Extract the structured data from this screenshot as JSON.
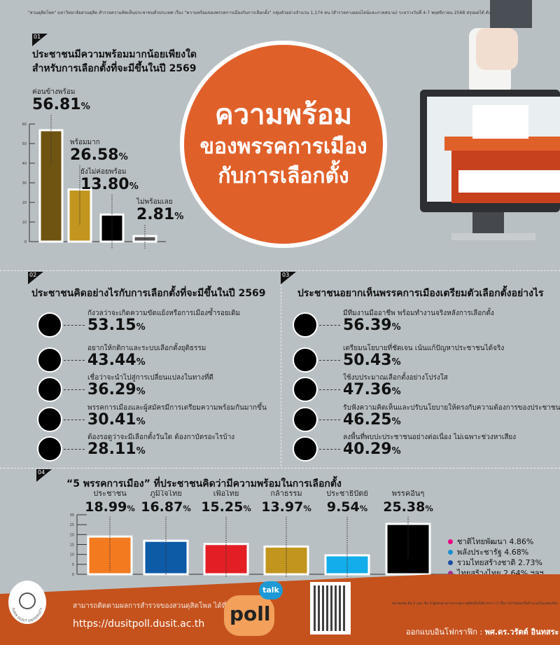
{
  "source_note": "\"สวนดุสิตโพล\" มหาวิทยาลัยสวนดุสิต สำรวจความคิดเห็นประชาชนทั่วประเทศ เรื่อง \"ความพร้อมของพรรคการเมืองกับการเลือกตั้ง\" กลุ่มตัวอย่างจำนวน 1,174 คน (สำรวจทางออนไลน์และภาคสนาม) ระหว่างวันที่ 4-7 พฤศจิกายน 2568 สรุปผลได้ ดังนี้",
  "hero": {
    "line1": "ความพร้อม",
    "line2": "ของพรรคการเมือง",
    "line3": "กับการเลือกตั้ง"
  },
  "s1": {
    "tag": "01",
    "title1": "ประชาชนมีความพร้อมมากน้อยเพียงใด",
    "title2": "สำหรับการเลือกตั้งที่จะมีขึ้นในปี 2569"
  },
  "s2": {
    "tag": "02",
    "title": "ประชาชนคิดอย่างไรกับการเลือกตั้งที่จะมีขึ้นในปี 2569",
    "items": [
      {
        "label": "กังวลว่าจะเกิดความขัดแย้งหรือการเมืองซ้ำรอยเดิม",
        "value": "53.15"
      },
      {
        "label": "อยากให้กติกาและระบบเลือกตั้งยุติธรรม",
        "value": "43.44"
      },
      {
        "label": "เชื่อว่าจะนำไปสู่การเปลี่ยนแปลงในทางที่ดี",
        "value": "36.29"
      },
      {
        "label": "พรรคการเมืองและผู้สมัครมีการเตรียมความพร้อมกันมากขึ้น",
        "value": "30.41"
      },
      {
        "label": "ต้องรอดูว่าจะมีเลือกตั้งวันใด ต้องกาบัตรอะไรบ้าง",
        "value": "28.11"
      }
    ]
  },
  "s3": {
    "tag": "03",
    "title": "ประชาชนอยากเห็นพรรคการเมืองเตรียมตัวเลือกตั้งอย่างไร",
    "items": [
      {
        "label": "มีทีมงานมืออาชีพ พร้อมทำงานจริงหลังการเลือกตั้ง",
        "value": "56.39"
      },
      {
        "label": "เตรียมนโยบายที่ชัดเจน เน้นแก้ปัญหาประชาชนได้จริง",
        "value": "50.43"
      },
      {
        "label": "ใช้งบประมาณเลือกตั้งอย่างโปร่งใส",
        "value": "47.36"
      },
      {
        "label": "รับฟังความคิดเห็นและปรับนโยบายให้ตรงกับความต้องการของประชาชน",
        "value": "46.25"
      },
      {
        "label": "ลงพื้นที่พบปะประชาชนอย่างต่อเนื่อง ไม่เฉพาะช่วงหาเสียง",
        "value": "40.29"
      }
    ]
  },
  "s4": {
    "tag": "04",
    "title": "“5 พรรคการเมือง” ที่ประชาชนคิดว่ามีความพร้อมในการเลือกตั้ง",
    "others": [
      {
        "label": "ชาติไทยพัฒนา 4.86%",
        "color": "#e6007e"
      },
      {
        "label": "พลังประชารัฐ 4.68%",
        "color": "#1a8fd0"
      },
      {
        "label": "รวมไทยสร้างชาติ 2.73%",
        "color": "#1c4fa0"
      },
      {
        "label": "ไทยสร้างไทย 2.64% ฯลฯ",
        "color": "#a0338f"
      }
    ]
  },
  "pct_sign": "%",
  "footer": {
    "follow": "สามารถติดตามผลการสำรวจของสวนดุสิตโพล ได้ที่",
    "url": "https://dusitpoll.dusit.ac.th",
    "note": "หมายเหตุ ข้อ 2 และ ข้อ 3 ผู้ตอบสามารถระบุความคิดเห็นได้มากกว่า 1 เรื่อง (ค่าร้อยละจึงคำนวณในแต่ละข้อ)",
    "credit_label": "ออกแบบอินโฟกราฟิก :",
    "credit_name": "พศ.ดร.วรัตต์ อินทสระ",
    "poll_logo": "poll",
    "talk": "talk",
    "university": "SUAN DUSIT UNIVERSITY"
  },
  "chart_data": [
    {
      "type": "bar",
      "title": "ประชาชนมีความพร้อมมากน้อยเพียงใด สำหรับการเลือกตั้งที่จะมีขึ้นในปี 2569",
      "categories": [
        "ค่อนข้างพร้อม",
        "พร้อมมาก",
        "ยังไม่ค่อยพร้อม",
        "ไม่พร้อมเลย"
      ],
      "values": [
        56.81,
        26.58,
        13.8,
        2.81
      ],
      "value_labels": [
        "56.81",
        "26.58",
        "13.80",
        "2.81"
      ],
      "colors": [
        "#6e5410",
        "#c2951e",
        "#000000",
        "#555555"
      ],
      "ylim": [
        0,
        60
      ],
      "yticks": [
        0,
        10,
        20,
        30,
        40,
        50,
        60
      ]
    },
    {
      "type": "bar",
      "title": "“5 พรรคการเมือง” ที่ประชาชนคิดว่ามีความพร้อมในการเลือกตั้ง",
      "categories": [
        "ประชาชน",
        "ภูมิใจไทย",
        "เพื่อไทย",
        "กล้าธรรม",
        "ประชาธิปัตย์",
        "พรรคอื่นๆ"
      ],
      "values": [
        18.99,
        16.87,
        15.25,
        13.97,
        9.54,
        25.38
      ],
      "value_labels": [
        "18.99",
        "16.87",
        "15.25",
        "13.97",
        "9.54",
        "25.38"
      ],
      "colors": [
        "#f47a20",
        "#0d5aa7",
        "#e31e24",
        "#c2951e",
        "#12adea",
        "#000000"
      ],
      "ylim": [
        0,
        30
      ],
      "yticks": [
        0,
        5,
        10,
        15,
        20,
        25,
        30
      ]
    }
  ]
}
